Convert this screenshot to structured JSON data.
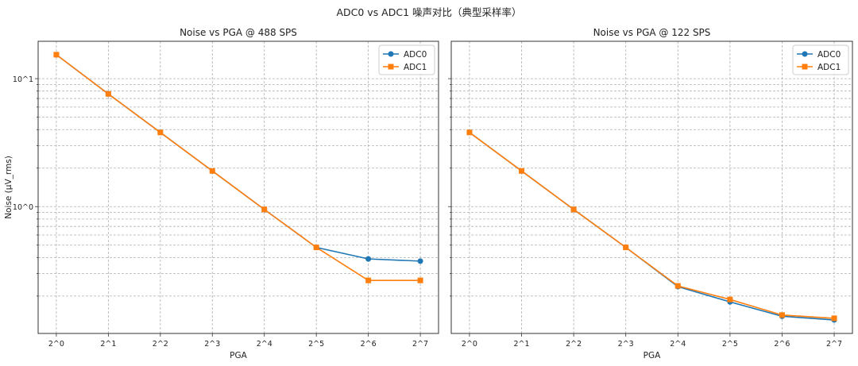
{
  "suptitle": "ADC0 vs ADC1 噪声对比（典型采样率）",
  "colors": {
    "ADC0": "#1f77b4",
    "ADC1": "#ff7f0e"
  },
  "chart_data": [
    {
      "type": "line",
      "title": "Noise vs PGA @ 488 SPS",
      "xlabel": "PGA",
      "ylabel": "Noise (µV_rms)",
      "xscale": "log2",
      "yscale": "log",
      "x": [
        1,
        2,
        4,
        8,
        16,
        32,
        64,
        128
      ],
      "xtick_labels": [
        "2^0",
        "2^1",
        "2^2",
        "2^3",
        "2^4",
        "2^5",
        "2^6",
        "2^7"
      ],
      "ylim": [
        0.102,
        19.6
      ],
      "ytick_labels": [
        "10^0",
        "10^1"
      ],
      "grid": true,
      "legend": "top-right",
      "series": [
        {
          "name": "ADC0",
          "marker": "circle",
          "values": [
            15.4,
            7.6,
            3.8,
            1.9,
            0.95,
            0.48,
            0.39,
            0.375
          ]
        },
        {
          "name": "ADC1",
          "marker": "square",
          "values": [
            15.4,
            7.6,
            3.8,
            1.9,
            0.95,
            0.48,
            0.265,
            0.265
          ]
        }
      ]
    },
    {
      "type": "line",
      "title": "Noise vs PGA @ 122 SPS",
      "xlabel": "PGA",
      "ylabel": "",
      "xscale": "log2",
      "yscale": "log",
      "x": [
        1,
        2,
        4,
        8,
        16,
        32,
        64,
        128
      ],
      "xtick_labels": [
        "2^0",
        "2^1",
        "2^2",
        "2^3",
        "2^4",
        "2^5",
        "2^6",
        "2^7"
      ],
      "ylim": [
        0.102,
        19.6
      ],
      "grid": true,
      "legend": "top-right",
      "series": [
        {
          "name": "ADC0",
          "marker": "circle",
          "values": [
            3.8,
            1.9,
            0.95,
            0.48,
            0.237,
            0.18,
            0.139,
            0.13
          ]
        },
        {
          "name": "ADC1",
          "marker": "square",
          "values": [
            3.8,
            1.9,
            0.95,
            0.48,
            0.24,
            0.188,
            0.142,
            0.134
          ]
        }
      ]
    }
  ]
}
